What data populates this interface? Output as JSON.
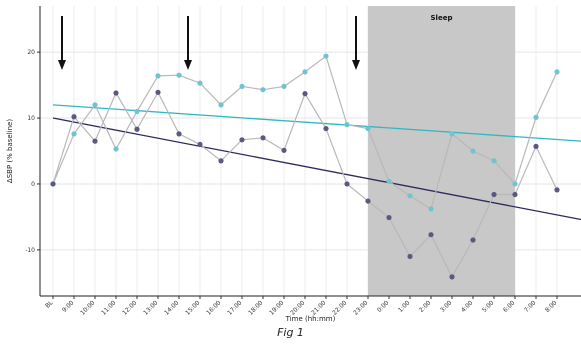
{
  "chart_data": {
    "type": "line",
    "title": "",
    "xlabel": "Time (hh:mm)",
    "ylabel": "ΔSBP (% baseline)",
    "ylim": [
      -17,
      27
    ],
    "yticks": [
      -10,
      0,
      10,
      20
    ],
    "categories": [
      "BL",
      "9:00",
      "10:00",
      "11:00",
      "12:00",
      "13:00",
      "14:00",
      "15:00",
      "16:00",
      "17:00",
      "18:00",
      "19:00",
      "20:00",
      "21:00",
      "22:00",
      "23:00",
      "0:00",
      "1:00",
      "2:00",
      "3:00",
      "4:00",
      "5:00",
      "6:00",
      "7:00",
      "8:00"
    ],
    "series": [
      {
        "color": "#70c4cf",
        "values": [
          0,
          7.6,
          12,
          5.3,
          11,
          16.4,
          16.5,
          15.3,
          12,
          14.8,
          14.3,
          14.8,
          17,
          19.4,
          9,
          8.4,
          0.4,
          -1.8,
          -3.8,
          7.6,
          5,
          3.5,
          0,
          10.1,
          17
        ]
      },
      {
        "color": "#5a5a80",
        "values": [
          0,
          10.2,
          6.5,
          13.8,
          8.3,
          13.9,
          7.6,
          6,
          3.5,
          6.7,
          7,
          5.1,
          13.7,
          8.4,
          0,
          -2.6,
          -5.1,
          -11,
          -7.7,
          -14.1,
          -8.5,
          -1.6,
          -1.6,
          5.7,
          -0.9
        ]
      }
    ],
    "trend_lines": [
      {
        "color": "#2fb8c4",
        "from": 12,
        "to": 6.5
      },
      {
        "color": "#2a2a5e",
        "from": 10,
        "to": -5.4
      }
    ],
    "shaded_region": {
      "from": "23:00",
      "to": "6:00",
      "label": "Sleep",
      "color": "#c8c8c8"
    },
    "arrow_positions": [
      "BL",
      "14:00",
      "22:00"
    ],
    "grid": true
  },
  "caption": "Fig 1"
}
